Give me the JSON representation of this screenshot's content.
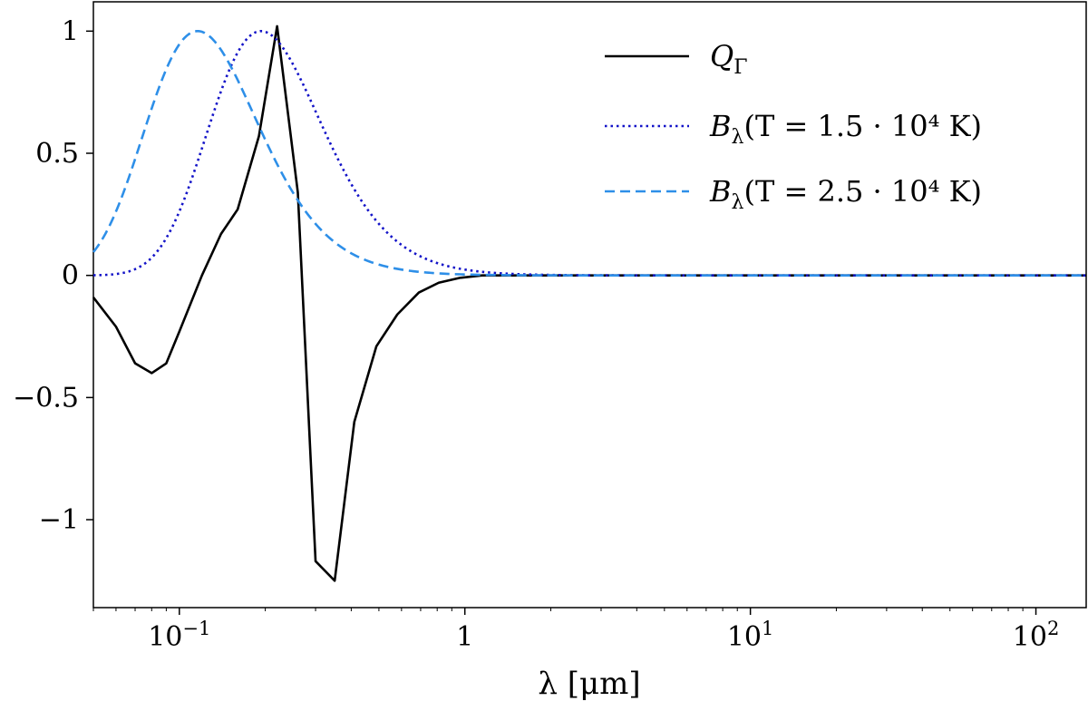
{
  "chart_data": {
    "type": "line",
    "xscale": "log",
    "xlim": [
      0.05,
      150
    ],
    "ylim": [
      -1.36,
      1.12
    ],
    "xlabel": "λ [μm]",
    "ylabel": "",
    "grid": false,
    "legend_position": "top-right",
    "xticks": [
      {
        "value": 0.1,
        "base": "10",
        "exp": "−1"
      },
      {
        "value": 1,
        "base": "1",
        "exp": ""
      },
      {
        "value": 10,
        "base": "10",
        "exp": "1"
      },
      {
        "value": 100,
        "base": "10",
        "exp": "2"
      }
    ],
    "yticks": [
      {
        "value": 1,
        "label": "1"
      },
      {
        "value": 0.5,
        "label": "0.5"
      },
      {
        "value": 0,
        "label": "0"
      },
      {
        "value": -0.5,
        "label": "−0.5"
      },
      {
        "value": -1,
        "label": "−1"
      }
    ],
    "series": [
      {
        "name": "Q_Γ",
        "legend": {
          "main": "Q",
          "sub": "Γ",
          "tail": ""
        },
        "color": "#000000",
        "style": "solid",
        "x": [
          0.05,
          0.06,
          0.07,
          0.08,
          0.09,
          0.1,
          0.12,
          0.14,
          0.16,
          0.19,
          0.22,
          0.26,
          0.3,
          0.35,
          0.41,
          0.49,
          0.58,
          0.69,
          0.81,
          0.96,
          1.15,
          1.4,
          2.0,
          3.0,
          5.0,
          10.0,
          150.0
        ],
        "y": [
          -0.09,
          -0.21,
          -0.36,
          -0.4,
          -0.36,
          -0.23,
          0.0,
          0.17,
          0.27,
          0.57,
          1.02,
          0.34,
          -1.17,
          -1.25,
          -0.6,
          -0.29,
          -0.16,
          -0.07,
          -0.03,
          -0.01,
          0.0,
          0.0,
          0.0,
          0.0,
          0.0,
          0.0,
          0.0
        ]
      },
      {
        "name": "B_λ(T=1.5·10^4 K)",
        "legend": {
          "main": "B",
          "sub": "λ",
          "tail": "(T = 1.5 · 10⁴ K)"
        },
        "color": "#1414c8",
        "style": "dotted",
        "temperature_K": 15000,
        "normalized": true
      },
      {
        "name": "B_λ(T=2.5·10^4 K)",
        "legend": {
          "main": "B",
          "sub": "λ",
          "tail": "(T = 2.5 · 10⁴ K)"
        },
        "color": "#2e8fe8",
        "style": "dashed",
        "temperature_K": 25000,
        "normalized": true
      }
    ]
  }
}
